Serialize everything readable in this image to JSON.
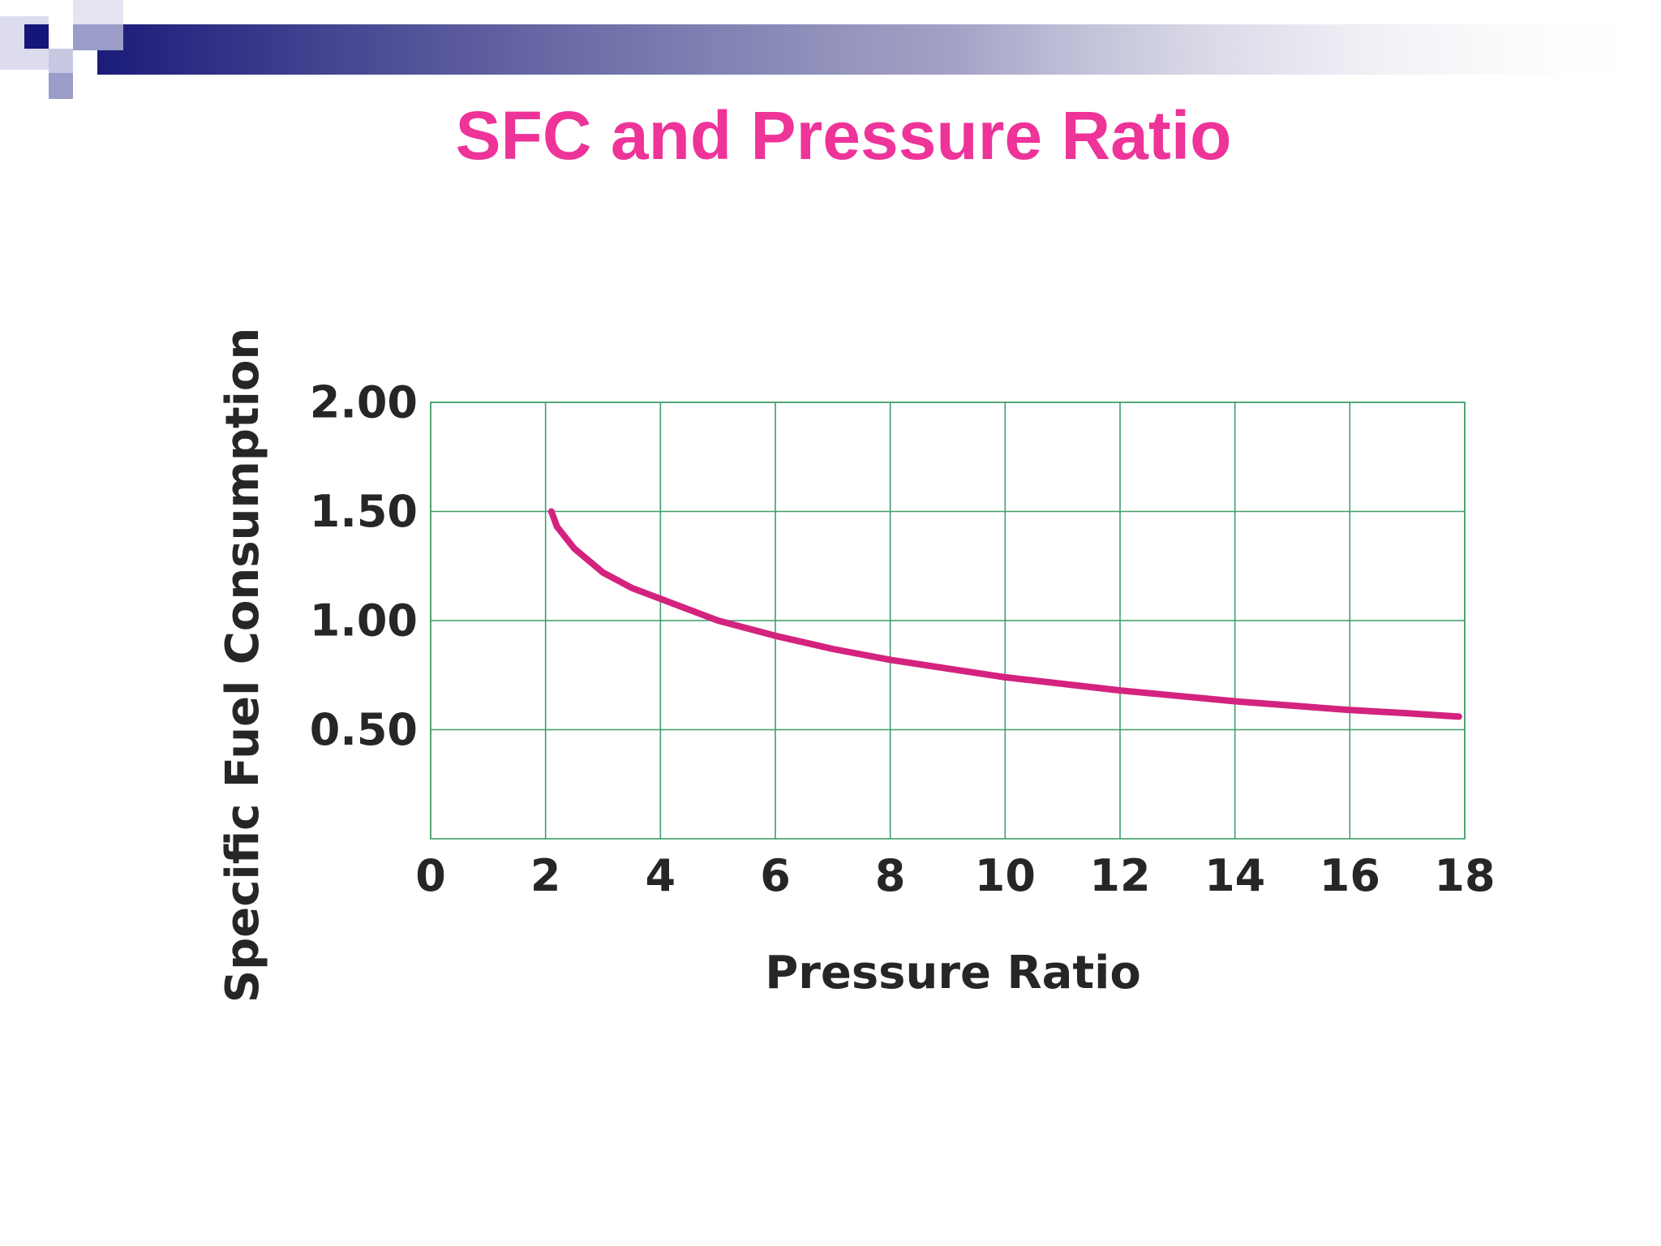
{
  "slide": {
    "title": "SFC and Pressure Ratio",
    "title_color": "#EE3399",
    "banner_color": "#1B1B7A"
  },
  "chart_data": {
    "type": "line",
    "title": "",
    "xlabel": "Pressure Ratio",
    "ylabel": "Specific Fuel Consumption",
    "xlim": [
      0,
      18
    ],
    "ylim": [
      0,
      2.0
    ],
    "x_ticks": [
      0,
      2,
      4,
      6,
      8,
      10,
      12,
      14,
      16,
      18
    ],
    "x_tick_labels": [
      "0",
      "2",
      "4",
      "6",
      "8",
      "10",
      "12",
      "14",
      "16",
      "18"
    ],
    "y_ticks": [
      0.5,
      1.0,
      1.5,
      2.0
    ],
    "y_tick_labels": [
      "0.50",
      "1.00",
      "1.50",
      "2.00"
    ],
    "grid": true,
    "grid_color": "#3F9E6A",
    "line_color": "#D4237E",
    "series": [
      {
        "x": [
          2.1,
          2.2,
          2.5,
          3,
          3.5,
          4,
          5,
          6,
          7,
          8,
          9,
          10,
          11,
          12,
          13,
          14,
          15,
          16,
          17,
          17.9
        ],
        "values": [
          1.5,
          1.43,
          1.33,
          1.22,
          1.15,
          1.1,
          1.0,
          0.93,
          0.87,
          0.82,
          0.78,
          0.74,
          0.71,
          0.68,
          0.655,
          0.63,
          0.61,
          0.59,
          0.575,
          0.56
        ]
      }
    ]
  }
}
